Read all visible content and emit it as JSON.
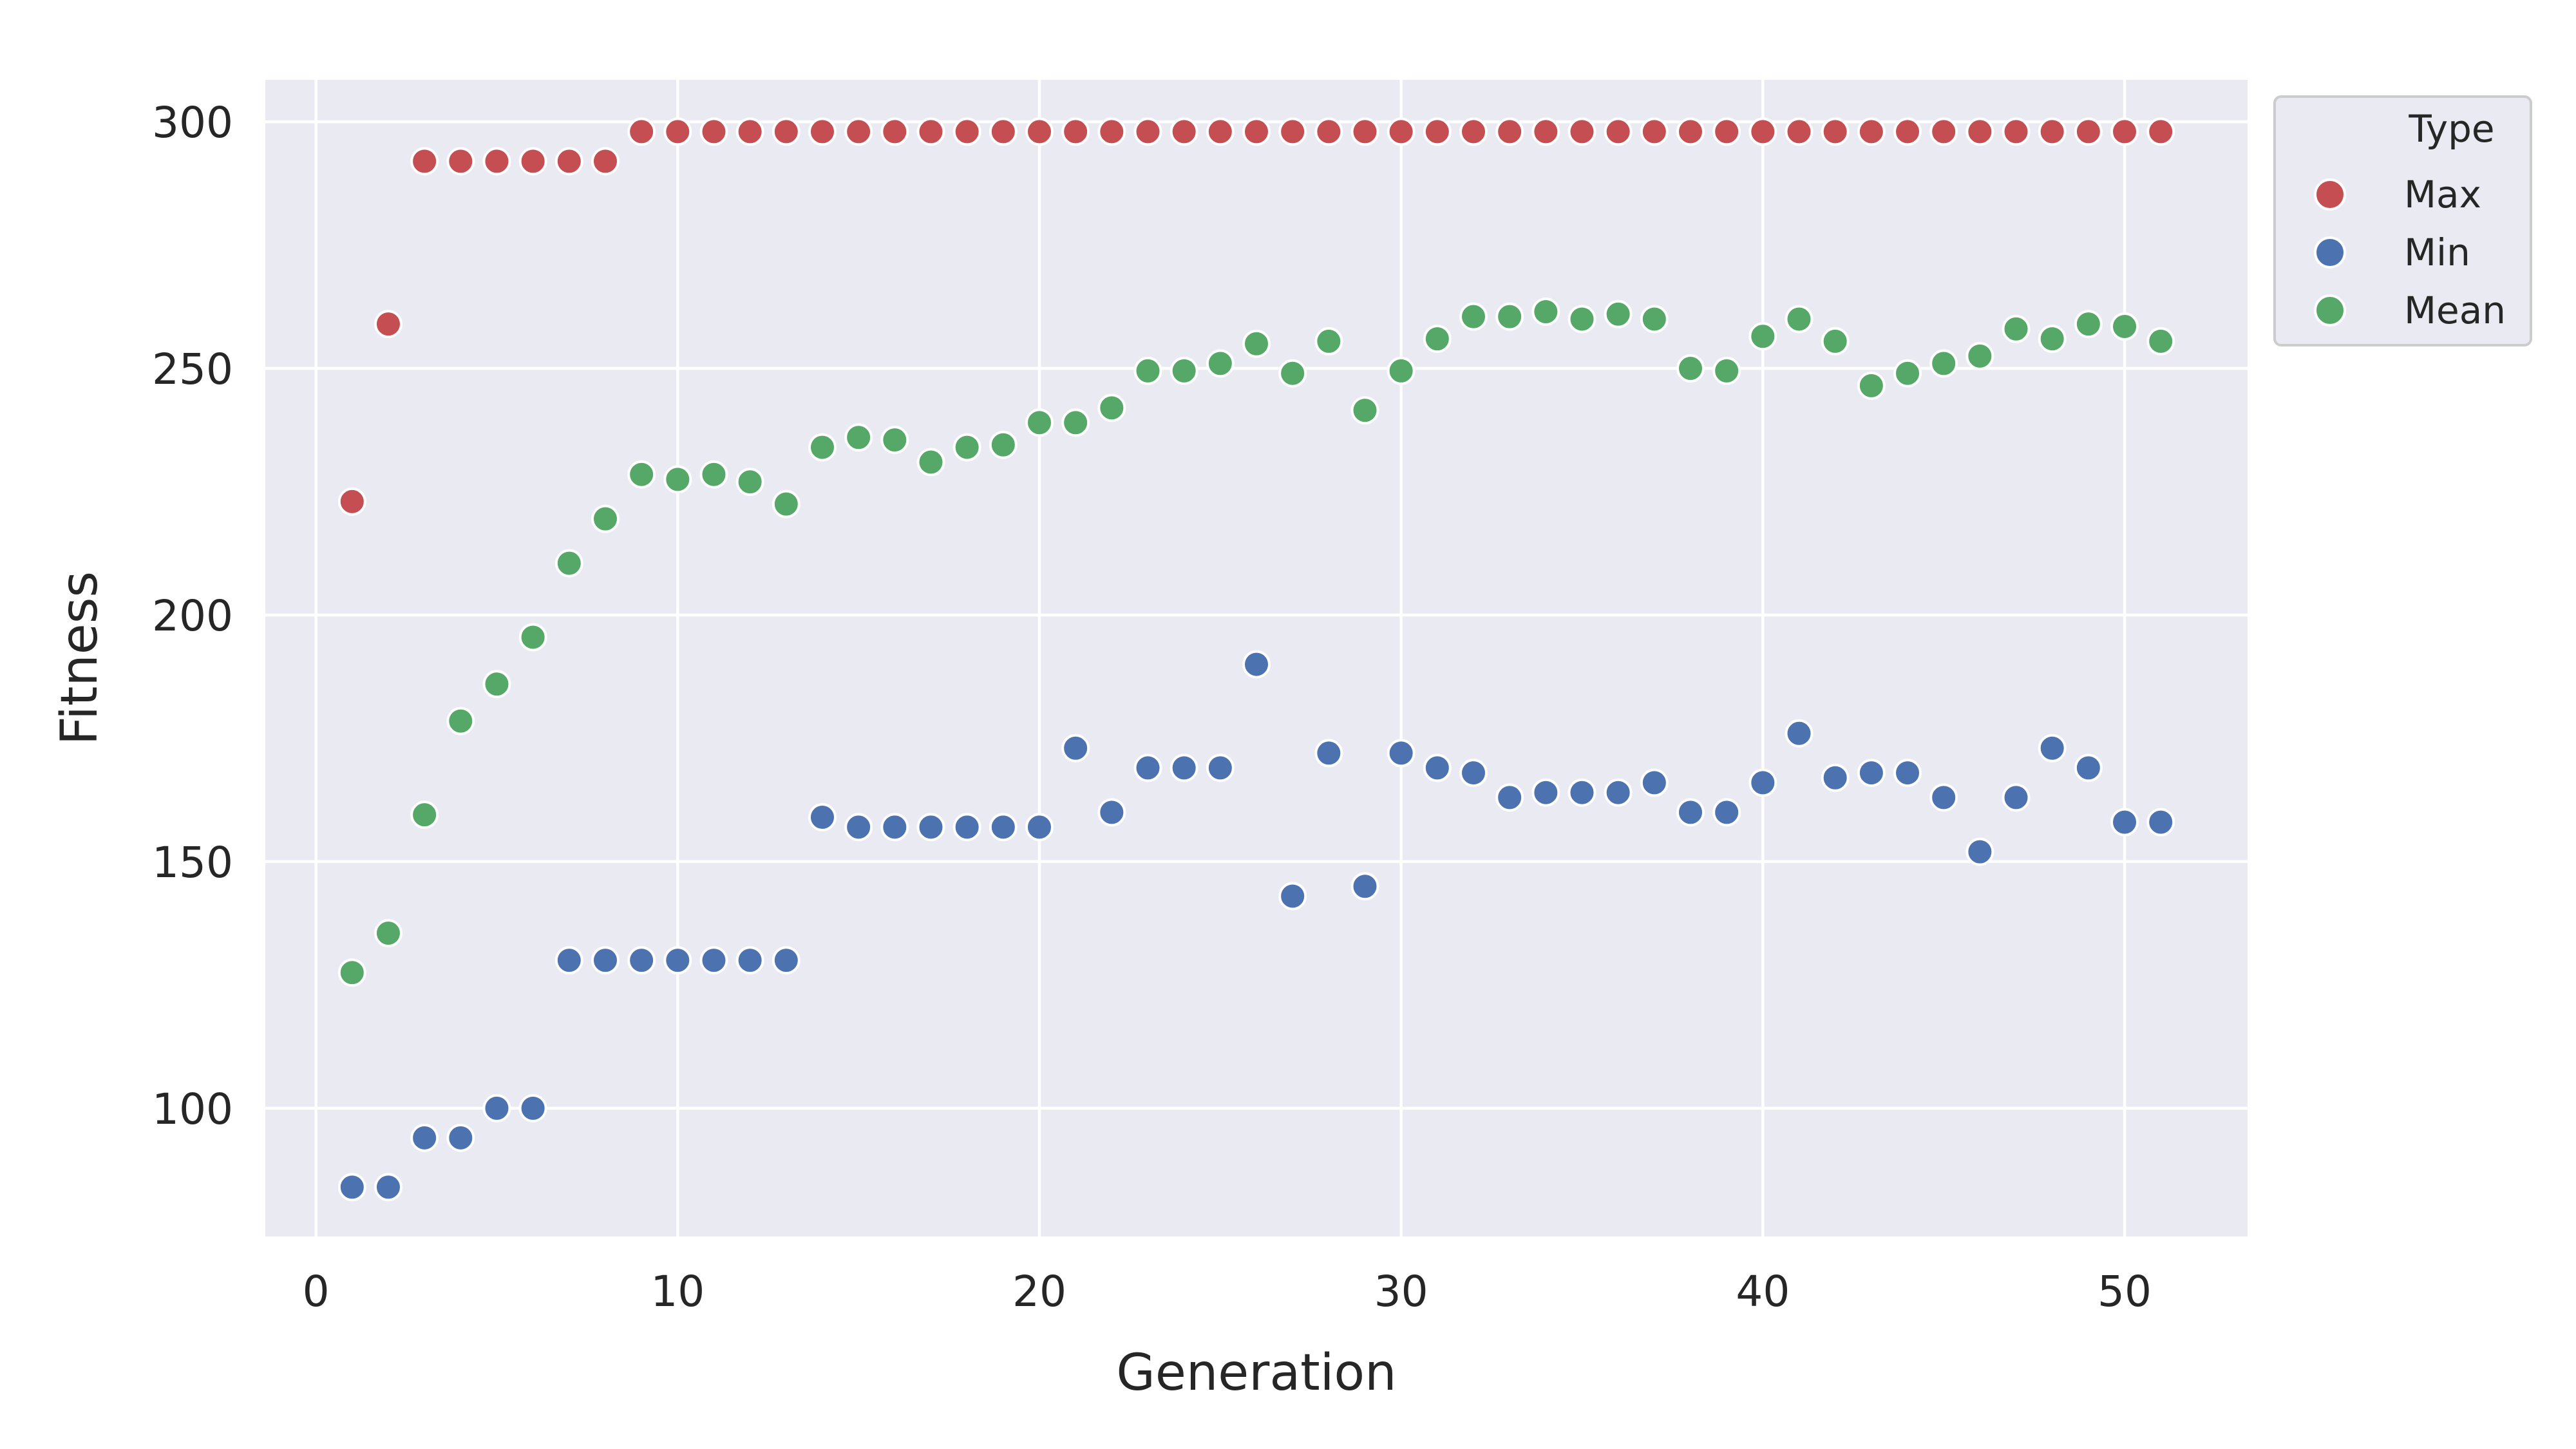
{
  "chart_data": {
    "type": "scatter",
    "title": "",
    "xlabel": "Generation",
    "ylabel": "Fitness",
    "xlim": [
      -1.4,
      53.4
    ],
    "ylim": [
      74,
      308.5
    ],
    "x_ticks": [
      0,
      10,
      20,
      30,
      40,
      50
    ],
    "y_ticks": [
      100,
      150,
      200,
      250,
      300
    ],
    "grid": true,
    "legend": {
      "title": "Type",
      "placement": "outside-right-top",
      "entries": [
        "Max",
        "Min",
        "Mean"
      ]
    },
    "x": [
      1,
      2,
      3,
      4,
      5,
      6,
      7,
      8,
      9,
      10,
      11,
      12,
      13,
      14,
      15,
      16,
      17,
      18,
      19,
      20,
      21,
      22,
      23,
      24,
      25,
      26,
      27,
      28,
      29,
      30,
      31,
      32,
      33,
      34,
      35,
      36,
      37,
      38,
      39,
      40,
      41,
      42,
      43,
      44,
      45,
      46,
      47,
      48,
      49,
      50,
      51
    ],
    "series": [
      {
        "name": "Max",
        "color": "#c44e52",
        "values": [
          223,
          259,
          292,
          292,
          292,
          292,
          292,
          292,
          298,
          298,
          298,
          298,
          298,
          298,
          298,
          298,
          298,
          298,
          298,
          298,
          298,
          298,
          298,
          298,
          298,
          298,
          298,
          298,
          298,
          298,
          298,
          298,
          298,
          298,
          298,
          298,
          298,
          298,
          298,
          298,
          298,
          298,
          298,
          298,
          298,
          298,
          298,
          298,
          298,
          298,
          298
        ]
      },
      {
        "name": "Min",
        "color": "#4c72b0",
        "values": [
          84,
          84,
          94,
          94,
          100,
          100,
          130,
          130,
          130,
          130,
          130,
          130,
          130,
          159,
          157,
          157,
          157,
          157,
          157,
          157,
          173,
          160,
          169,
          169,
          169,
          190,
          143,
          172,
          145,
          172,
          169,
          168,
          163,
          164,
          164,
          164,
          166,
          160,
          160,
          166,
          176,
          167,
          168,
          168,
          163,
          152,
          163,
          173,
          169,
          158,
          158
        ]
      },
      {
        "name": "Mean",
        "color": "#55a868",
        "values": [
          127.5,
          135.5,
          159.5,
          178.5,
          186,
          195.5,
          210.5,
          219.5,
          228.5,
          227.5,
          228.5,
          227,
          222.5,
          234,
          236,
          235.5,
          231,
          234,
          234.5,
          239,
          239,
          242,
          249.5,
          249.5,
          251,
          255,
          249,
          255.5,
          241.5,
          249.5,
          256,
          260.5,
          260.5,
          261.5,
          260,
          261,
          260,
          250,
          249.5,
          256.5,
          260,
          255.5,
          246.5,
          249,
          251,
          252.5,
          258,
          256,
          259,
          258.5,
          255.5
        ]
      }
    ]
  }
}
